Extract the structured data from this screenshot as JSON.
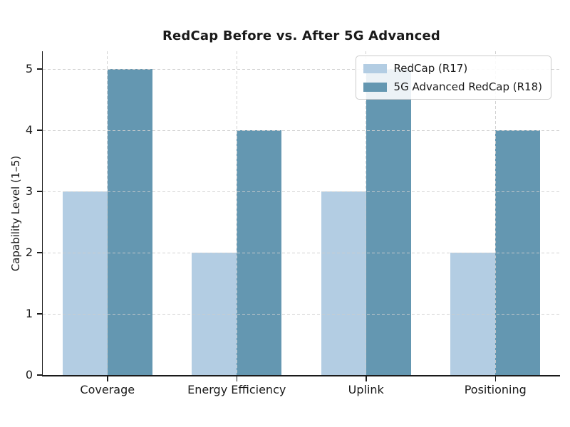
{
  "chart_data": {
    "type": "bar",
    "title": "RedCap Before vs. After 5G Advanced",
    "xlabel": "",
    "ylabel": "Capability Level (1–5)",
    "categories": [
      "Coverage",
      "Energy Efficiency",
      "Uplink",
      "Positioning"
    ],
    "series": [
      {
        "name": "RedCap (R17)",
        "values": [
          3,
          2,
          3,
          2
        ],
        "color": "#b3cde3"
      },
      {
        "name": "5G Advanced RedCap (R18)",
        "values": [
          5,
          4,
          5,
          4
        ],
        "color": "#6497b1"
      }
    ],
    "ylim": [
      0,
      5
    ],
    "yticks": [
      0,
      1,
      2,
      3,
      4,
      5
    ],
    "grid": "dashed, both axes, drawn above bars",
    "legend_position": "upper right"
  },
  "colors": {
    "bar_light": "#b3cde3",
    "bar_dark": "#6497b1",
    "grid": "#cdcdcd",
    "axis": "#1a1a1a",
    "text": "#1a1a1a",
    "background": "#ffffff",
    "legend_border": "#cccccc"
  }
}
